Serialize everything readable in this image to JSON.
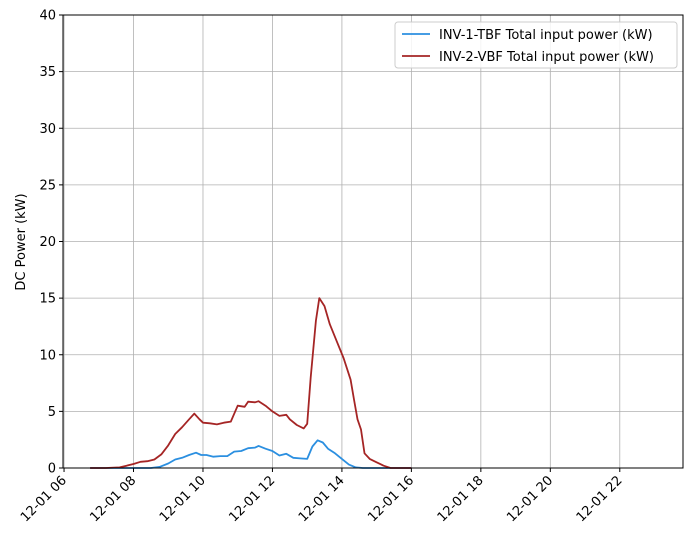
{
  "chart_data": {
    "type": "line",
    "title": "",
    "xlabel": "",
    "ylabel": "DC Power (kW)",
    "ylim": [
      0,
      40
    ],
    "xlim_hours": [
      5.97,
      23.82
    ],
    "grid": true,
    "legend_position": "top-right",
    "y_ticks": [
      {
        "value": 0,
        "label": "0"
      },
      {
        "value": 5,
        "label": "5"
      },
      {
        "value": 10,
        "label": "10"
      },
      {
        "value": 15,
        "label": "15"
      },
      {
        "value": 20,
        "label": "20"
      },
      {
        "value": 25,
        "label": "25"
      },
      {
        "value": 30,
        "label": "30"
      },
      {
        "value": 35,
        "label": "35"
      },
      {
        "value": 40,
        "label": "40"
      }
    ],
    "x_ticks": [
      {
        "value": 6,
        "label": "12-01 06"
      },
      {
        "value": 8,
        "label": "12-01 08"
      },
      {
        "value": 10,
        "label": "12-01 10"
      },
      {
        "value": 12,
        "label": "12-01 12"
      },
      {
        "value": 14,
        "label": "12-01 14"
      },
      {
        "value": 16,
        "label": "12-01 16"
      },
      {
        "value": 18,
        "label": "12-01 18"
      },
      {
        "value": 20,
        "label": "12-01 20"
      },
      {
        "value": 22,
        "label": "12-01 22"
      }
    ],
    "series": [
      {
        "name": "INV-1-TBF Total input power (kW)",
        "color": "#2b8fe0",
        "points": [
          [
            6.75,
            0
          ],
          [
            7.5,
            0
          ],
          [
            8.0,
            0
          ],
          [
            8.5,
            0
          ],
          [
            8.75,
            0.1
          ],
          [
            9.0,
            0.4
          ],
          [
            9.2,
            0.75
          ],
          [
            9.4,
            0.9
          ],
          [
            9.6,
            1.15
          ],
          [
            9.8,
            1.35
          ],
          [
            9.95,
            1.15
          ],
          [
            10.1,
            1.15
          ],
          [
            10.3,
            1.0
          ],
          [
            10.5,
            1.05
          ],
          [
            10.7,
            1.05
          ],
          [
            10.9,
            1.45
          ],
          [
            11.1,
            1.5
          ],
          [
            11.3,
            1.75
          ],
          [
            11.5,
            1.8
          ],
          [
            11.6,
            1.95
          ],
          [
            11.8,
            1.7
          ],
          [
            12.0,
            1.5
          ],
          [
            12.2,
            1.1
          ],
          [
            12.4,
            1.25
          ],
          [
            12.6,
            0.9
          ],
          [
            12.8,
            0.85
          ],
          [
            13.0,
            0.8
          ],
          [
            13.15,
            1.9
          ],
          [
            13.3,
            2.45
          ],
          [
            13.45,
            2.25
          ],
          [
            13.6,
            1.7
          ],
          [
            13.8,
            1.3
          ],
          [
            14.0,
            0.8
          ],
          [
            14.2,
            0.3
          ],
          [
            14.4,
            0.05
          ],
          [
            14.6,
            0
          ],
          [
            15.0,
            0
          ],
          [
            15.5,
            0
          ],
          [
            16.0,
            0
          ]
        ]
      },
      {
        "name": "INV-2-VBF Total input power (kW)",
        "color": "#a52525",
        "points": [
          [
            6.75,
            0
          ],
          [
            7.2,
            0
          ],
          [
            7.6,
            0.05
          ],
          [
            7.8,
            0.2
          ],
          [
            8.0,
            0.35
          ],
          [
            8.2,
            0.55
          ],
          [
            8.4,
            0.6
          ],
          [
            8.6,
            0.75
          ],
          [
            8.8,
            1.2
          ],
          [
            9.0,
            2.0
          ],
          [
            9.2,
            3.0
          ],
          [
            9.4,
            3.6
          ],
          [
            9.6,
            4.3
          ],
          [
            9.75,
            4.8
          ],
          [
            9.9,
            4.3
          ],
          [
            10.0,
            4.0
          ],
          [
            10.2,
            3.95
          ],
          [
            10.4,
            3.85
          ],
          [
            10.6,
            4.0
          ],
          [
            10.8,
            4.1
          ],
          [
            11.0,
            5.5
          ],
          [
            11.2,
            5.4
          ],
          [
            11.3,
            5.85
          ],
          [
            11.5,
            5.8
          ],
          [
            11.6,
            5.9
          ],
          [
            11.8,
            5.5
          ],
          [
            12.0,
            5.0
          ],
          [
            12.2,
            4.6
          ],
          [
            12.4,
            4.7
          ],
          [
            12.5,
            4.3
          ],
          [
            12.7,
            3.8
          ],
          [
            12.9,
            3.5
          ],
          [
            13.0,
            3.9
          ],
          [
            13.1,
            8.0
          ],
          [
            13.25,
            13.0
          ],
          [
            13.35,
            15.0
          ],
          [
            13.5,
            14.3
          ],
          [
            13.65,
            12.7
          ],
          [
            13.85,
            11.2
          ],
          [
            14.05,
            9.7
          ],
          [
            14.25,
            7.8
          ],
          [
            14.35,
            6.0
          ],
          [
            14.45,
            4.3
          ],
          [
            14.55,
            3.4
          ],
          [
            14.65,
            1.3
          ],
          [
            14.8,
            0.8
          ],
          [
            15.0,
            0.5
          ],
          [
            15.2,
            0.2
          ],
          [
            15.4,
            0
          ],
          [
            15.7,
            0
          ],
          [
            16.0,
            0
          ]
        ]
      }
    ]
  }
}
